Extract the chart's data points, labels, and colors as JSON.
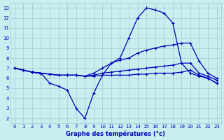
{
  "title": "Graphe des températures (°c)",
  "bg_color": "#c8eef0",
  "grid_color": "#a0ccd0",
  "line_color": "#0000bb",
  "xlim": [
    -0.5,
    23.5
  ],
  "ylim": [
    1.5,
    13.5
  ],
  "xticks": [
    0,
    1,
    2,
    3,
    4,
    5,
    6,
    7,
    8,
    9,
    10,
    11,
    12,
    13,
    14,
    15,
    16,
    17,
    18,
    19,
    20,
    21,
    22,
    23
  ],
  "yticks": [
    2,
    3,
    4,
    5,
    6,
    7,
    8,
    9,
    10,
    11,
    12,
    13
  ],
  "series": [
    {
      "x": [
        0,
        1,
        2,
        3,
        4,
        5,
        6,
        7,
        8,
        9,
        10,
        11,
        12,
        13,
        14,
        15,
        16,
        17,
        18,
        19,
        20,
        21,
        22,
        23
      ],
      "y": [
        7,
        6.8,
        6.6,
        6.5,
        5.5,
        5.2,
        4.8,
        3.0,
        2.0,
        4.5,
        6.3,
        7.5,
        8.0,
        10.0,
        12.0,
        13.0,
        12.8,
        12.5,
        11.5,
        7.5,
        6.5,
        6.2,
        6.0,
        5.5
      ]
    },
    {
      "x": [
        0,
        1,
        2,
        3,
        4,
        5,
        6,
        7,
        8,
        9,
        10,
        11,
        12,
        13,
        14,
        15,
        16,
        17,
        18,
        19,
        20,
        21,
        22,
        23
      ],
      "y": [
        7.0,
        6.8,
        6.6,
        6.5,
        6.4,
        6.3,
        6.3,
        6.3,
        6.2,
        6.5,
        7.0,
        7.5,
        7.8,
        8.0,
        8.5,
        8.8,
        9.0,
        9.2,
        9.3,
        9.5,
        9.5,
        7.7,
        6.5,
        6.0
      ]
    },
    {
      "x": [
        0,
        1,
        2,
        3,
        4,
        5,
        6,
        7,
        8,
        9,
        10,
        11,
        12,
        13,
        14,
        15,
        16,
        17,
        18,
        19,
        20,
        21,
        22,
        23
      ],
      "y": [
        7.0,
        6.8,
        6.6,
        6.5,
        6.4,
        6.3,
        6.3,
        6.3,
        6.2,
        6.3,
        6.5,
        6.6,
        6.7,
        6.8,
        6.9,
        7.0,
        7.1,
        7.2,
        7.3,
        7.5,
        7.5,
        6.5,
        6.2,
        5.8
      ]
    },
    {
      "x": [
        0,
        1,
        2,
        3,
        4,
        5,
        6,
        7,
        8,
        9,
        10,
        11,
        12,
        13,
        14,
        15,
        16,
        17,
        18,
        19,
        20,
        21,
        22,
        23
      ],
      "y": [
        7.0,
        6.8,
        6.6,
        6.5,
        6.4,
        6.3,
        6.3,
        6.3,
        6.2,
        6.2,
        6.3,
        6.3,
        6.3,
        6.3,
        6.4,
        6.4,
        6.5,
        6.5,
        6.5,
        6.6,
        6.8,
        6.3,
        6.0,
        5.5
      ]
    }
  ]
}
